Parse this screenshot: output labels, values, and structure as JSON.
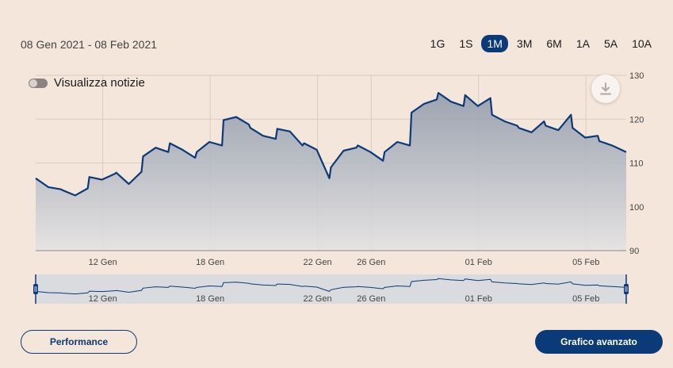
{
  "header": {
    "date_range": "08 Gen 2021 - 08 Feb 2021",
    "periods": [
      "1G",
      "1S",
      "1M",
      "3M",
      "6M",
      "1A",
      "5A",
      "10A"
    ],
    "active_period": "1M"
  },
  "news_toggle": {
    "label": "Visualizza notizie",
    "on": false
  },
  "download_icon": "download-icon",
  "buttons": {
    "performance": "Performance",
    "advanced": "Grafico avanzato"
  },
  "colors": {
    "line": "#0b3a78",
    "background": "#f4e6da",
    "accent": "#0b3a78"
  },
  "chart_data": {
    "type": "area",
    "x_labels": [
      "12 Gen",
      "18 Gen",
      "22 Gen",
      "26 Gen",
      "01 Feb",
      "05 Feb"
    ],
    "y_ticks": [
      130,
      120,
      110,
      100,
      90
    ],
    "ylim": [
      90,
      130
    ],
    "xlim": [
      "2021-01-08 09:00",
      "2021-02-08 17:30"
    ],
    "grid": true,
    "series": [
      {
        "points": [
          [
            "2021-01-08 09:00",
            106.5
          ],
          [
            "2021-01-08 13:00",
            104.5
          ],
          [
            "2021-01-08 17:00",
            104.0
          ],
          [
            "2021-01-11 09:00",
            103.8
          ],
          [
            "2021-01-11 13:00",
            102.6
          ],
          [
            "2021-01-11 17:00",
            104.2
          ],
          [
            "2021-01-12 09:00",
            106.8
          ],
          [
            "2021-01-12 13:00",
            106.2
          ],
          [
            "2021-01-12 17:00",
            107.5
          ],
          [
            "2021-01-13 09:00",
            107.8
          ],
          [
            "2021-01-13 13:00",
            105.2
          ],
          [
            "2021-01-13 17:00",
            108.0
          ],
          [
            "2021-01-14 09:00",
            111.5
          ],
          [
            "2021-01-14 13:00",
            113.5
          ],
          [
            "2021-01-14 17:00",
            112.5
          ],
          [
            "2021-01-15 09:00",
            114.5
          ],
          [
            "2021-01-15 13:00",
            113.0
          ],
          [
            "2021-01-15 17:00",
            111.2
          ],
          [
            "2021-01-18 09:00",
            112.5
          ],
          [
            "2021-01-18 13:00",
            114.8
          ],
          [
            "2021-01-18 17:00",
            114.0
          ],
          [
            "2021-01-19 09:00",
            119.8
          ],
          [
            "2021-01-19 13:00",
            120.5
          ],
          [
            "2021-01-19 17:00",
            118.8
          ],
          [
            "2021-01-20 09:00",
            118.0
          ],
          [
            "2021-01-20 13:00",
            116.2
          ],
          [
            "2021-01-20 17:00",
            115.5
          ],
          [
            "2021-01-21 09:00",
            117.8
          ],
          [
            "2021-01-21 13:00",
            117.2
          ],
          [
            "2021-01-21 17:00",
            114.0
          ],
          [
            "2021-01-22 09:00",
            114.5
          ],
          [
            "2021-01-22 13:00",
            113.0
          ],
          [
            "2021-01-22 17:00",
            106.5
          ],
          [
            "2021-01-25 09:00",
            109.0
          ],
          [
            "2021-01-25 13:00",
            112.8
          ],
          [
            "2021-01-25 17:00",
            113.5
          ],
          [
            "2021-01-26 09:00",
            114.0
          ],
          [
            "2021-01-26 13:00",
            112.5
          ],
          [
            "2021-01-26 17:00",
            110.5
          ],
          [
            "2021-01-27 09:00",
            112.5
          ],
          [
            "2021-01-27 13:00",
            114.8
          ],
          [
            "2021-01-27 17:00",
            114.0
          ],
          [
            "2021-01-28 09:00",
            121.5
          ],
          [
            "2021-01-28 13:00",
            123.5
          ],
          [
            "2021-01-28 17:00",
            124.5
          ],
          [
            "2021-01-29 09:00",
            126.0
          ],
          [
            "2021-01-29 13:00",
            124.0
          ],
          [
            "2021-01-29 17:00",
            123.0
          ],
          [
            "2021-02-01 09:00",
            125.5
          ],
          [
            "2021-02-01 13:00",
            123.0
          ],
          [
            "2021-02-01 17:00",
            124.8
          ],
          [
            "2021-02-02 09:00",
            121.0
          ],
          [
            "2021-02-02 13:00",
            119.5
          ],
          [
            "2021-02-02 17:00",
            118.5
          ],
          [
            "2021-02-03 09:00",
            118.0
          ],
          [
            "2021-02-03 13:00",
            117.0
          ],
          [
            "2021-02-03 17:00",
            119.5
          ],
          [
            "2021-02-04 09:00",
            118.5
          ],
          [
            "2021-02-04 13:00",
            117.5
          ],
          [
            "2021-02-04 17:00",
            121.0
          ],
          [
            "2021-02-05 09:00",
            118.0
          ],
          [
            "2021-02-05 13:00",
            115.8
          ],
          [
            "2021-02-05 17:00",
            116.2
          ],
          [
            "2021-02-08 09:00",
            115.0
          ],
          [
            "2021-02-08 13:00",
            114.0
          ],
          [
            "2021-02-08 17:30",
            112.5
          ]
        ]
      }
    ]
  },
  "navigator": {
    "x_labels": [
      "12 Gen",
      "18 Gen",
      "22 Gen",
      "26 Gen",
      "01 Feb",
      "05 Feb"
    ]
  }
}
